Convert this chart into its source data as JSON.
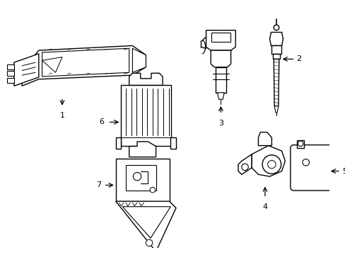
{
  "background_color": "#ffffff",
  "line_color": "#000000",
  "lw": 1.0,
  "fig_w": 4.89,
  "fig_h": 3.6,
  "dpi": 100
}
